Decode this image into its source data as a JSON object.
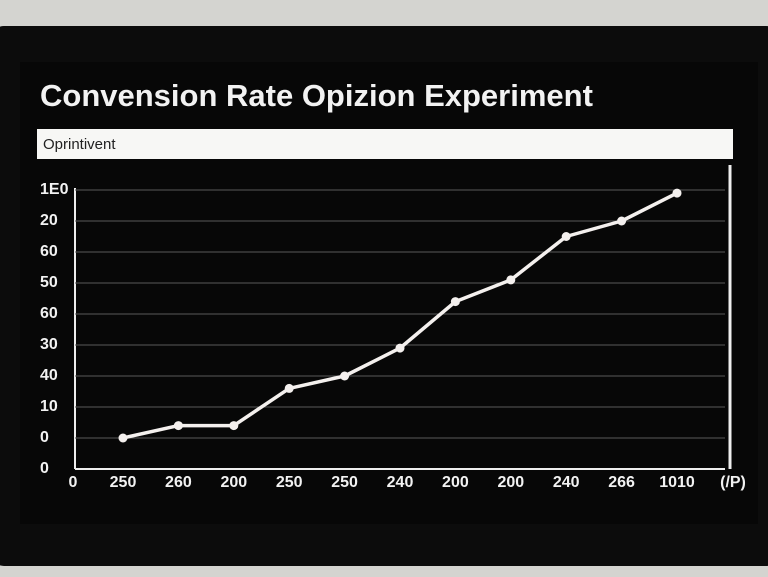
{
  "chart_data": {
    "type": "line",
    "title": "Convension Rate Opizion Experiment",
    "subtitle": "Oprintivent",
    "categories": [
      "250",
      "260",
      "200",
      "250",
      "250",
      "240",
      "200",
      "200",
      "240",
      "266",
      "1010"
    ],
    "x_origin_label": "0",
    "x_unit_label": "(/P)",
    "series": [
      {
        "color": "#f4f0ee",
        "values": [
          1.0,
          1.4,
          1.4,
          2.6,
          3.0,
          3.9,
          5.4,
          6.1,
          7.5,
          8.0,
          8.9
        ]
      }
    ],
    "ylim": [
      0,
      9
    ],
    "yticks": [
      {
        "value": 0,
        "label": "0"
      },
      {
        "value": 1,
        "label": "0"
      },
      {
        "value": 2,
        "label": "10"
      },
      {
        "value": 3,
        "label": "40"
      },
      {
        "value": 4,
        "label": "30"
      },
      {
        "value": 5,
        "label": "60"
      },
      {
        "value": 6,
        "label": "50"
      },
      {
        "value": 7,
        "label": "60"
      },
      {
        "value": 8,
        "label": "20"
      },
      {
        "value": 9,
        "label": "1E0"
      }
    ],
    "grid": true
  }
}
